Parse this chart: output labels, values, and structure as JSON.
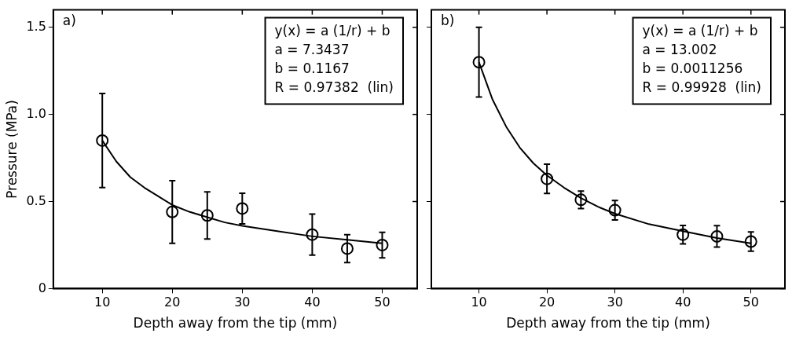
{
  "chart_data": [
    {
      "type": "scatter",
      "xlabel": "Depth away from the tip (mm)",
      "ylabel": "Pressure (MPa)",
      "xlim": [
        3,
        55
      ],
      "ylim": [
        0,
        1.6
      ],
      "xticks": [
        10,
        20,
        30,
        40,
        50
      ],
      "yticks": [
        0,
        0.5,
        {
          "value": 1,
          "label": "1.0"
        },
        1.5
      ],
      "grid": false,
      "legend": false,
      "annotations": [
        "a)",
        "y(x) = a (1/r) + b",
        "a = 7.3437",
        "b = 0.1167",
        "R = 0.97382  (lin)"
      ],
      "series": [
        {
          "type": "scatter",
          "color": "#000000",
          "marker": "circle",
          "x": [
            10,
            20,
            25,
            30,
            40,
            45,
            50
          ],
          "values": [
            0.85,
            0.44,
            0.42,
            0.46,
            0.31,
            0.23,
            0.25
          ],
          "errors": [
            0.27,
            0.18,
            0.135,
            0.088,
            0.118,
            0.08,
            0.073
          ]
        },
        {
          "type": "line",
          "color": "#000000",
          "marker": "none",
          "line_style": "solid",
          "x": [
            10,
            12,
            14,
            16,
            18,
            20,
            22.5,
            25,
            27.5,
            30,
            35,
            40,
            45,
            50
          ],
          "values": [
            0.85,
            0.73,
            0.64,
            0.58,
            0.53,
            0.48,
            0.44,
            0.41,
            0.38,
            0.36,
            0.33,
            0.3,
            0.28,
            0.26
          ]
        }
      ]
    },
    {
      "type": "scatter",
      "xlabel": "Depth away from the tip (mm)",
      "xlim": [
        3,
        55
      ],
      "ylim": [
        0,
        1.6
      ],
      "xticks": [
        10,
        20,
        30,
        40,
        50
      ],
      "yticks": [
        0,
        0.5,
        1,
        1.5
      ],
      "grid": false,
      "legend": false,
      "tick_labels": "x",
      "annotations": [
        "b)",
        "y(x) = a (1/r) + b",
        "a = 13.002",
        "b = 0.0011256",
        "R = 0.99928  (lin)"
      ],
      "series": [
        {
          "type": "scatter",
          "color": "#000000",
          "marker": "circle",
          "x": [
            10,
            20,
            25,
            30,
            40,
            45,
            50
          ],
          "values": [
            1.3,
            0.63,
            0.51,
            0.45,
            0.31,
            0.3,
            0.27
          ],
          "errors": [
            0.2,
            0.084,
            0.05,
            0.056,
            0.053,
            0.062,
            0.055
          ]
        },
        {
          "type": "line",
          "color": "#000000",
          "marker": "none",
          "line_style": "solid",
          "x": [
            10,
            12,
            14,
            16,
            18,
            20,
            22.5,
            25,
            27.5,
            30,
            35,
            40,
            45,
            50
          ],
          "values": [
            1.3,
            1.085,
            0.93,
            0.81,
            0.72,
            0.65,
            0.58,
            0.52,
            0.47,
            0.43,
            0.37,
            0.33,
            0.29,
            0.26
          ]
        }
      ]
    }
  ]
}
